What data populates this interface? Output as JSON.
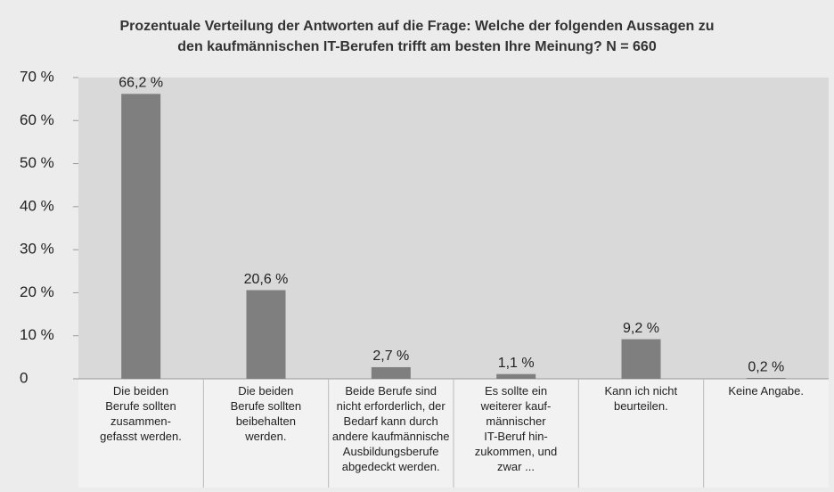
{
  "chart_data": {
    "type": "bar",
    "title": "Prozentuale Verteilung der Antworten auf die Frage: Welche der folgenden Aussagen zu\nden kaufmännischen IT-Berufen trifft am besten Ihre Meinung? N = 660",
    "categories": [
      "Die beiden\nBerufe sollten\nzusammen-\ngefasst werden.",
      "Die beiden\nBerufe sollten\nbeibehalten\nwerden.",
      "Beide Berufe sind\nnicht erforderlich, der\nBedarf kann durch\nandere kaufmännische\nAusbildungsberufe\nabgedeckt werden.",
      "Es sollte ein\nweiterer kauf-\nmännischer\nIT-Beruf hin-\nzukommen, und\nzwar ...",
      "Kann ich nicht\nbeurteilen.",
      "Keine Angabe."
    ],
    "values": [
      66.2,
      20.6,
      2.7,
      1.1,
      9.2,
      0.2
    ],
    "value_labels": [
      "66,2 %",
      "20,6 %",
      "2,7 %",
      "1,1 %",
      "9,2 %",
      "0,2 %"
    ],
    "color": "#7f7f7f",
    "ylim": [
      0,
      70
    ],
    "yticks": [
      0,
      {
        "value": 10,
        "label": "10 %"
      },
      {
        "value": 20,
        "label": "20 %"
      },
      {
        "value": 30,
        "label": "30 %"
      },
      {
        "value": 40,
        "label": "40 %"
      },
      {
        "value": 50,
        "label": "50 %"
      },
      {
        "value": 60,
        "label": "60 %"
      },
      {
        "value": 70,
        "label": "70 %"
      }
    ],
    "grid": false
  }
}
